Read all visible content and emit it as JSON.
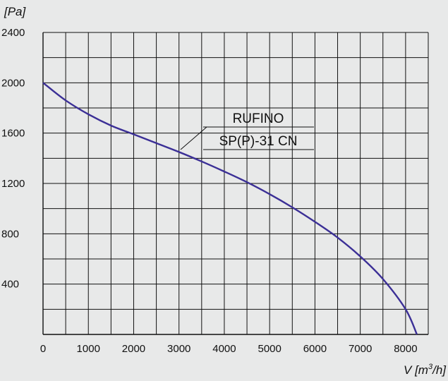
{
  "chart_data": {
    "type": "line",
    "ylabel": "[Pa]",
    "xlabel_main": "V [m",
    "xlabel_sup": "3",
    "xlabel_end": "/h]",
    "x_ticks": [
      "0",
      "1000",
      "2000",
      "3000",
      "4000",
      "5000",
      "6000",
      "7000",
      "8000"
    ],
    "y_ticks": [
      "400",
      "800",
      "1200",
      "1600",
      "2000",
      "2400"
    ],
    "xlim": [
      0,
      8500
    ],
    "ylim": [
      0,
      2400
    ],
    "grid": true,
    "colors": {
      "curve": "#3b2f96",
      "grid": "#111111",
      "background": "#e8e9e9"
    },
    "series": [
      {
        "label_line1": "RUFINO",
        "label_line2": "SP(P)-31 CN",
        "x": [
          0,
          500,
          1000,
          1500,
          2000,
          2500,
          3000,
          3500,
          4000,
          4500,
          5000,
          5500,
          6000,
          6500,
          7000,
          7500,
          8000,
          8250
        ],
        "y": [
          2000,
          1860,
          1750,
          1660,
          1590,
          1520,
          1450,
          1375,
          1295,
          1210,
          1115,
          1010,
          895,
          770,
          620,
          440,
          200,
          0
        ]
      }
    ]
  }
}
